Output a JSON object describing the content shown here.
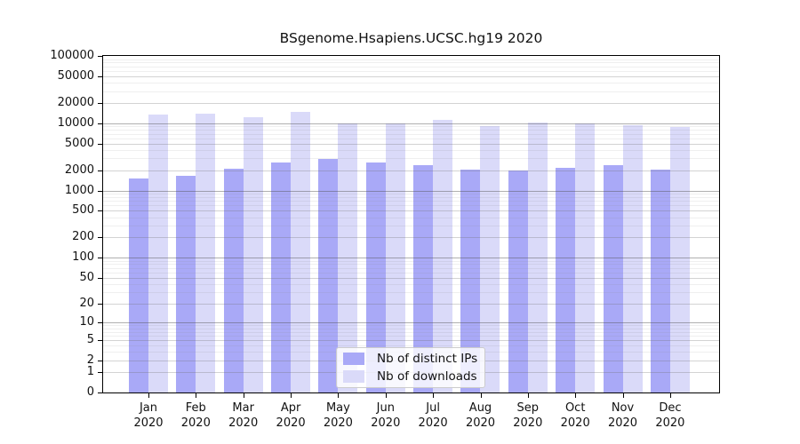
{
  "title": "BSgenome.Hsapiens.UCSC.hg19 2020",
  "chart_data": {
    "type": "bar",
    "title": "BSgenome.Hsapiens.UCSC.hg19 2020",
    "categories": [
      "Jan",
      "Feb",
      "Mar",
      "Apr",
      "May",
      "Jun",
      "Jul",
      "Aug",
      "Sep",
      "Oct",
      "Nov",
      "Dec"
    ],
    "year": "2020",
    "series": [
      {
        "name": "Nb of distinct IPs",
        "color": "#a9a9f7",
        "values": [
          1500,
          1650,
          2100,
          2650,
          2950,
          2600,
          2400,
          2080,
          1980,
          2150,
          2370,
          2030
        ]
      },
      {
        "name": "Nb of downloads",
        "color": "#dadaf9",
        "values": [
          13400,
          13700,
          12500,
          14800,
          10100,
          9900,
          11200,
          9100,
          10400,
          10100,
          9400,
          8900
        ]
      }
    ],
    "y_axis": {
      "scale": "log10(value+1)",
      "tick_labels": [
        "100000",
        "50000",
        "20000",
        "10000",
        "5000",
        "2000",
        "1000",
        "500",
        "200",
        "100",
        "50",
        "20",
        "10",
        "5",
        "2",
        "1",
        "0"
      ],
      "ylim": [
        0,
        100000
      ]
    },
    "x_axis": {
      "label_line2": "2020"
    },
    "legend": {
      "position": "bottom-center",
      "entries": [
        "Nb of distinct IPs",
        "Nb of downloads"
      ]
    },
    "grid": {
      "on": true,
      "decade_line_color": "rgba(80,80,80,0.45)",
      "labeled_line_color": "rgba(110,110,110,0.30)",
      "minor_line_color": "rgba(130,130,130,0.13)"
    }
  }
}
